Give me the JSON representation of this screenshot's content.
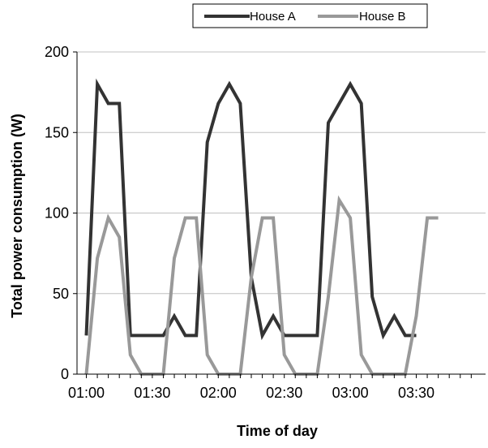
{
  "chart_data": {
    "type": "line",
    "title": "",
    "xlabel": "Time of day",
    "ylabel": "Total power consumption (W)",
    "x_tick_labels": [
      "01:00",
      "01:30",
      "02:00",
      "02:30",
      "03:00",
      "03:30"
    ],
    "x_tick_minutes": [
      0,
      30,
      60,
      90,
      120,
      150
    ],
    "xlim_minutes": [
      0,
      175
    ],
    "ylim": [
      0,
      200
    ],
    "y_ticks": [
      0,
      50,
      100,
      150,
      200
    ],
    "grid": "horizontal",
    "legend_position": "top",
    "x_minutes": [
      0,
      5,
      10,
      15,
      20,
      25,
      30,
      35,
      40,
      45,
      50,
      55,
      60,
      65,
      70,
      75,
      80,
      85,
      90,
      95,
      100,
      105,
      110,
      115,
      120,
      125,
      130,
      135,
      140,
      145,
      150,
      155,
      160,
      165,
      170
    ],
    "series": [
      {
        "name": "House A",
        "color": "#333333",
        "values": [
          24,
          180,
          168,
          168,
          24,
          24,
          24,
          24,
          36,
          24,
          24,
          144,
          168,
          180,
          168,
          60,
          24,
          36,
          24,
          24,
          24,
          24,
          156,
          168,
          180,
          168,
          48,
          24,
          36,
          24,
          24,
          null,
          null,
          null,
          null
        ]
      },
      {
        "name": "House B",
        "color": "#999999",
        "values": [
          0,
          72,
          97,
          85,
          12,
          0,
          0,
          0,
          72,
          97,
          97,
          12,
          0,
          0,
          0,
          60,
          97,
          97,
          12,
          0,
          0,
          0,
          48,
          108,
          97,
          12,
          0,
          0,
          0,
          0,
          36,
          97,
          97,
          null,
          null
        ]
      }
    ]
  }
}
